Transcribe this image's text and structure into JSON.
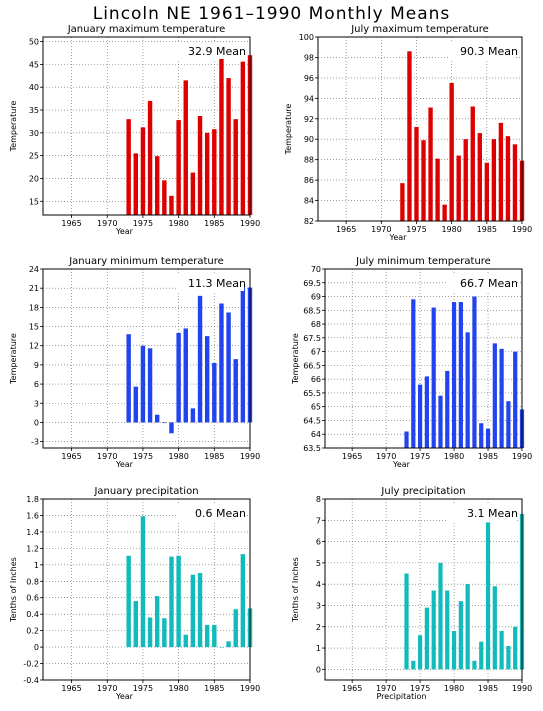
{
  "title": "Lincoln NE   1961–1990 Monthly Means",
  "chart_data": [
    {
      "type": "bar",
      "title": "January maximum temperature",
      "ylabel": "Temperature",
      "xlabel": "Year",
      "mean_label": "32.9 Mean",
      "color": "#dd0000",
      "xlim": [
        1961,
        1990
      ],
      "ylim": [
        12,
        51
      ],
      "yticks": [
        15,
        20,
        25,
        30,
        35,
        40,
        45,
        50
      ],
      "xticks": [
        1965,
        1970,
        1975,
        1980,
        1985,
        1990
      ],
      "x": [
        1973,
        1974,
        1975,
        1976,
        1977,
        1978,
        1979,
        1980,
        1981,
        1982,
        1983,
        1984,
        1985,
        1986,
        1987,
        1988,
        1989,
        1990
      ],
      "values": [
        33,
        25.5,
        31.2,
        37,
        24.9,
        19.6,
        16.2,
        32.8,
        41.5,
        21.3,
        33.7,
        30,
        30.8,
        47,
        42,
        33,
        45.6,
        47
      ]
    },
    {
      "type": "bar",
      "title": "July maximum temperature",
      "ylabel": "Temperature",
      "xlabel": "Year",
      "mean_label": "90.3 Mean",
      "color": "#dd0000",
      "xlim": [
        1961,
        1990
      ],
      "ylim": [
        82,
        100
      ],
      "yticks": [
        82,
        84,
        86,
        88,
        90,
        92,
        94,
        96,
        98,
        100
      ],
      "xticks": [
        1965,
        1970,
        1975,
        1980,
        1985,
        1990
      ],
      "x": [
        1973,
        1974,
        1975,
        1976,
        1977,
        1978,
        1979,
        1980,
        1981,
        1982,
        1983,
        1984,
        1985,
        1986,
        1987,
        1988,
        1989,
        1990
      ],
      "values": [
        85.7,
        98.6,
        91.2,
        89.9,
        93.1,
        88.1,
        83.6,
        95.5,
        88.4,
        90,
        93.2,
        90.6,
        87.7,
        90,
        91.6,
        90.3,
        89.5,
        87.9
      ]
    },
    {
      "type": "bar",
      "title": "January minimum temperature",
      "ylabel": "Temperature",
      "xlabel": "Year",
      "mean_label": "11.3 Mean",
      "color": "#2244ee",
      "xlim": [
        1961,
        1990
      ],
      "ylim": [
        -4,
        24
      ],
      "yticks": [
        -3,
        0,
        3,
        6,
        9,
        12,
        15,
        18,
        21,
        24
      ],
      "xticks": [
        1965,
        1970,
        1975,
        1980,
        1985,
        1990
      ],
      "x": [
        1973,
        1974,
        1975,
        1976,
        1977,
        1978,
        1979,
        1980,
        1981,
        1982,
        1983,
        1984,
        1985,
        1986,
        1987,
        1988,
        1989,
        1990
      ],
      "values": [
        13.8,
        5.6,
        12,
        11.6,
        1.2,
        -0.1,
        -1.7,
        14,
        14.7,
        2.2,
        19.8,
        13.5,
        9.3,
        18.6,
        17.2,
        9.9,
        21.4,
        21.1
      ]
    },
    {
      "type": "bar",
      "title": "July minimum temperature",
      "ylabel": "Temperature",
      "xlabel": "Year",
      "mean_label": "66.7 Mean",
      "color": "#2244ee",
      "xlim": [
        1961,
        1990
      ],
      "ylim": [
        63.5,
        70
      ],
      "yticks": [
        63.5,
        64,
        64.5,
        65,
        65.5,
        66,
        66.5,
        67,
        67.5,
        68,
        68.5,
        69,
        69.5,
        70
      ],
      "xticks": [
        1965,
        1970,
        1975,
        1980,
        1985,
        1990
      ],
      "x": [
        1973,
        1974,
        1975,
        1976,
        1977,
        1978,
        1979,
        1980,
        1981,
        1982,
        1983,
        1984,
        1985,
        1986,
        1987,
        1988,
        1989,
        1990
      ],
      "values": [
        64.1,
        68.9,
        65.8,
        66.1,
        68.6,
        65.4,
        66.3,
        68.8,
        68.8,
        67.7,
        69,
        64.4,
        64.2,
        67.3,
        67.1,
        65.2,
        67,
        64.9
      ]
    },
    {
      "type": "bar",
      "title": "January precipitation",
      "ylabel": "Tenths of Inches",
      "xlabel": "Year",
      "mean_label": "0.6 Mean",
      "color": "#11bbbb",
      "xlim": [
        1961,
        1990
      ],
      "ylim": [
        -0.4,
        1.8
      ],
      "yticks": [
        -0.4,
        -0.2,
        0,
        0.2,
        0.4,
        0.6,
        0.8,
        1,
        1.2,
        1.4,
        1.6,
        1.8
      ],
      "xticks": [
        1965,
        1970,
        1975,
        1980,
        1985,
        1990
      ],
      "x": [
        1973,
        1974,
        1975,
        1976,
        1977,
        1978,
        1979,
        1980,
        1981,
        1982,
        1983,
        1984,
        1985,
        1986,
        1987,
        1988,
        1989,
        1990
      ],
      "values": [
        1.11,
        0.56,
        1.59,
        0.36,
        0.62,
        0.35,
        1.1,
        1.11,
        0.15,
        0.88,
        0.9,
        0.27,
        0.27,
        0,
        0.07,
        0.46,
        1.13,
        0.47
      ]
    },
    {
      "type": "bar",
      "title": "July precipitation",
      "ylabel": "Tenths of Inches",
      "xlabel": "Precipitation",
      "mean_label": "3.1 Mean",
      "color": "#11bbbb",
      "xlim": [
        1961,
        1990
      ],
      "ylim": [
        -0.5,
        8
      ],
      "yticks": [
        0,
        1,
        2,
        3,
        4,
        5,
        6,
        7,
        8
      ],
      "xticks": [
        1965,
        1970,
        1975,
        1980,
        1985,
        1990
      ],
      "x": [
        1973,
        1974,
        1975,
        1976,
        1977,
        1978,
        1979,
        1980,
        1981,
        1982,
        1983,
        1984,
        1985,
        1986,
        1987,
        1988,
        1989,
        1990
      ],
      "values": [
        4.5,
        0.4,
        1.6,
        2.9,
        3.7,
        5,
        3.7,
        1.8,
        3.2,
        4,
        0.4,
        1.3,
        6.9,
        3.9,
        1.8,
        1.1,
        2,
        7.3
      ]
    }
  ]
}
